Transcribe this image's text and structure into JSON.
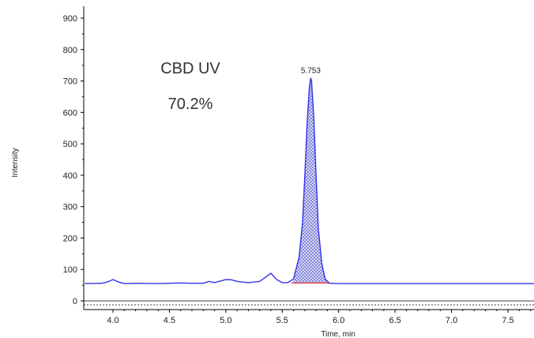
{
  "chart_data": {
    "type": "line",
    "xlabel": "Time, min",
    "ylabel": "Intensity",
    "xlim": [
      3.75,
      7.75
    ],
    "ylim": [
      -10,
      920
    ],
    "xticks": [
      "4.0",
      "4.5",
      "5.0",
      "5.5",
      "6.0",
      "6.5",
      "7.0",
      "7.5"
    ],
    "xtick_values": [
      4.0,
      4.5,
      5.0,
      5.5,
      6.0,
      6.5,
      7.0,
      7.5
    ],
    "yticks": [
      "0",
      "100",
      "200",
      "300",
      "400",
      "500",
      "600",
      "700",
      "800",
      "900"
    ],
    "ytick_values": [
      0,
      100,
      200,
      300,
      400,
      500,
      600,
      700,
      800,
      900
    ],
    "annotations": [
      "CBD UV",
      "70.2%"
    ],
    "peak_label": "5.753",
    "series": [
      {
        "color": "#3333ee",
        "x": [
          3.75,
          3.9,
          3.95,
          4.0,
          4.05,
          4.1,
          4.2,
          4.4,
          4.6,
          4.7,
          4.8,
          4.85,
          4.9,
          4.95,
          5.0,
          5.05,
          5.1,
          5.2,
          5.3,
          5.35,
          5.4,
          5.45,
          5.5,
          5.55,
          5.6,
          5.65,
          5.68,
          5.7,
          5.72,
          5.74,
          5.753,
          5.76,
          5.78,
          5.8,
          5.82,
          5.85,
          5.88,
          5.92,
          6.0,
          6.5,
          7.0,
          7.5,
          7.75
        ],
        "y": [
          55,
          56,
          60,
          68,
          60,
          55,
          56,
          55,
          57,
          56,
          56,
          62,
          58,
          63,
          68,
          67,
          62,
          58,
          62,
          75,
          88,
          68,
          58,
          58,
          70,
          140,
          250,
          400,
          560,
          680,
          710,
          700,
          580,
          400,
          230,
          120,
          70,
          56,
          55,
          55,
          55,
          55,
          55
        ]
      }
    ],
    "baseline_color": "#e02020",
    "fill_pattern": "hatched blue under main peak"
  }
}
